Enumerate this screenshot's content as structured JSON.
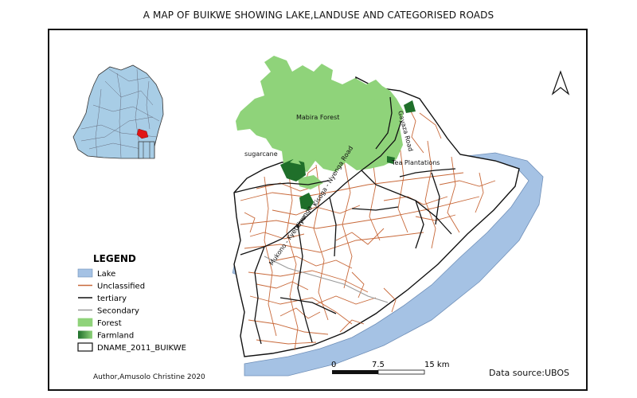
{
  "title": "A MAP OF BUIKWE SHOWING LAKE,LANDUSE AND CATEGORISED ROADS",
  "legend": {
    "title": "LEGEND",
    "items": [
      {
        "label": "Lake",
        "kind": "fill",
        "color": "#a5c2e4",
        "stroke": "#6f8fb8"
      },
      {
        "label": "Unclassified",
        "kind": "line",
        "color": "#c8693a"
      },
      {
        "label": "tertiary",
        "kind": "line",
        "color": "#111111"
      },
      {
        "label": "Secondary",
        "kind": "line",
        "color": "#9a9a9a"
      },
      {
        "label": "Forest",
        "kind": "fill",
        "color": "#8fd37a",
        "stroke": "#8fd37a"
      },
      {
        "label": "Farmland",
        "kind": "gradient",
        "color": "#1f6f2a",
        "stroke": "#1f6f2a"
      },
      {
        "label": "DNAME_2011_BUIKWE",
        "kind": "outline",
        "color": "#111111"
      }
    ]
  },
  "labels": {
    "forest": "Mabira Forest",
    "sugarcane": "sugarcane",
    "tea": "Tea Plantations",
    "gayaza": "Gayaza Road",
    "kisoga": "Kisoga - Nyenga Road",
    "kiyunga": "Kiyunga",
    "mukono": "Mukono - Kyetume"
  },
  "scale": {
    "ticks": [
      "0",
      "7.5",
      "15 km"
    ]
  },
  "author": "Author,Amusolo Christine 2020",
  "source": "Data source:UBOS",
  "colors": {
    "lake": "#a5c2e4",
    "forest": "#8fd37a",
    "farmland": "#1f6f2a",
    "unclassified": "#c8693a",
    "tertiary": "#111111",
    "secondary": "#9a9a9a",
    "inset_fill": "#a8cde6",
    "inset_highlight": "#e01515"
  }
}
